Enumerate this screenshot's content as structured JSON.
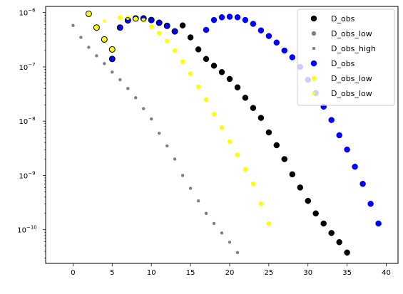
{
  "chart_data": {
    "type": "scatter",
    "title": "",
    "xlabel": "",
    "ylabel": "",
    "xlim": [
      -3.5,
      41.5
    ],
    "ylim": [
      2.4e-11,
      1.3e-06
    ],
    "yscale": "log",
    "grid": false,
    "legend_position": "top-right",
    "x_ticks": [
      {
        "value": 0,
        "label": "0"
      },
      {
        "value": 5,
        "label": "5"
      },
      {
        "value": 10,
        "label": "10"
      },
      {
        "value": 15,
        "label": "15"
      },
      {
        "value": 20,
        "label": "20"
      },
      {
        "value": 25,
        "label": "25"
      },
      {
        "value": 30,
        "label": "30"
      },
      {
        "value": 35,
        "label": "35"
      },
      {
        "value": 40,
        "label": "40"
      }
    ],
    "y_ticks": [
      {
        "value": 1e-10,
        "base": "10",
        "exp": "−10"
      },
      {
        "value": 1e-09,
        "base": "10",
        "exp": "−9"
      },
      {
        "value": 1e-08,
        "base": "10",
        "exp": "−8"
      },
      {
        "value": 1e-07,
        "base": "10",
        "exp": "−7"
      },
      {
        "value": 1e-06,
        "base": "10",
        "exp": "−6"
      }
    ],
    "series": [
      {
        "name": "D_obs",
        "color": "#000000",
        "edge": "#000000",
        "size": "large",
        "x": [
          14,
          15,
          16,
          17,
          18,
          19,
          20,
          21,
          22,
          23,
          24,
          25,
          26,
          27,
          28,
          29,
          30,
          31,
          32,
          33,
          34,
          35
        ],
        "y": [
          5.8e-07,
          3.5e-07,
          2.1e-07,
          1.4e-07,
          1.05e-07,
          8e-08,
          6e-08,
          4.2e-08,
          2.7e-08,
          1.75e-08,
          1.15e-08,
          6.2e-09,
          3.6e-09,
          2e-09,
          1.05e-09,
          6e-10,
          3.4e-10,
          2e-10,
          1.3e-10,
          8.7e-11,
          5.9e-11,
          3.8e-11
        ]
      },
      {
        "name": "D_obs_low",
        "color": "#808080",
        "edge": "#808080",
        "size": "medium",
        "x": [
          2,
          3,
          4,
          5
        ],
        "y": [
          9.5e-07,
          5.3e-07,
          3.2e-07,
          2.1e-07
        ]
      },
      {
        "name": "D_obs_high",
        "color": "#808080",
        "edge": "#808080",
        "size": "small",
        "x": [
          0,
          1,
          2,
          3,
          4,
          5,
          6,
          7,
          8,
          9,
          10,
          11,
          12,
          13,
          14,
          15,
          16,
          17,
          18,
          19,
          20,
          21
        ],
        "y": [
          5.8e-07,
          3.5e-07,
          2.3e-07,
          1.6e-07,
          1.15e-07,
          8e-08,
          5.8e-08,
          4e-08,
          2.7e-08,
          1.7e-08,
          1.1e-08,
          6e-09,
          3.5e-09,
          2e-09,
          1e-09,
          5.8e-10,
          3.4e-10,
          2e-10,
          1.3e-10,
          8.7e-11,
          5.9e-11,
          3.8e-11
        ]
      },
      {
        "name": "D_obs",
        "color": "#0000ff",
        "edge": "#0000ff",
        "size": "large",
        "x": [
          5,
          6,
          7,
          8,
          9,
          10,
          11,
          12,
          13,
          17,
          18,
          19,
          20,
          21,
          22,
          23,
          24,
          25,
          26,
          27,
          28,
          29,
          30,
          31,
          32,
          33,
          34,
          35,
          36,
          37,
          38,
          39
        ],
        "y": [
          1.4e-07,
          5.3e-07,
          7.2e-07,
          7.8e-07,
          7.8e-07,
          7.3e-07,
          6.5e-07,
          5.7e-07,
          4.5e-07,
          4.8e-07,
          7.3e-07,
          8.2e-07,
          8.4e-07,
          8.2e-07,
          7.3e-07,
          6.2e-07,
          4.7e-07,
          3.7e-07,
          2.8e-07,
          2e-07,
          1.5e-07,
          1e-07,
          5.8e-08,
          3.3e-08,
          1.85e-08,
          1.05e-08,
          5.5e-09,
          3e-09,
          1.45e-09,
          7e-10,
          3e-10,
          1.3e-10
        ]
      },
      {
        "name": "D_obs_low",
        "color": "#ffff00",
        "edge": "#ffff00",
        "size": "medium",
        "x": [
          2,
          3,
          4,
          5,
          6,
          7,
          8,
          9,
          10,
          11,
          12,
          13,
          14,
          15,
          16,
          17,
          18,
          19,
          20,
          21,
          22,
          23,
          24,
          25
        ],
        "y": [
          9.5e-07,
          5.3e-07,
          3.2e-07,
          2.1e-07,
          8.1e-07,
          8.1e-07,
          7.6e-07,
          7.2e-07,
          5.5e-07,
          4.2e-07,
          3e-07,
          2e-07,
          1.25e-07,
          7.5e-08,
          4.3e-08,
          2.5e-08,
          1.35e-08,
          7.6e-09,
          4.2e-09,
          2.4e-09,
          1.3e-09,
          7e-10,
          3e-10,
          1.3e-10
        ]
      },
      {
        "name": "D_obs_low",
        "color": "#ffff00",
        "edge": "#ffff00",
        "size": "small",
        "x": [
          3,
          4
        ],
        "y": [
          5e-07,
          7e-07
        ]
      }
    ]
  }
}
